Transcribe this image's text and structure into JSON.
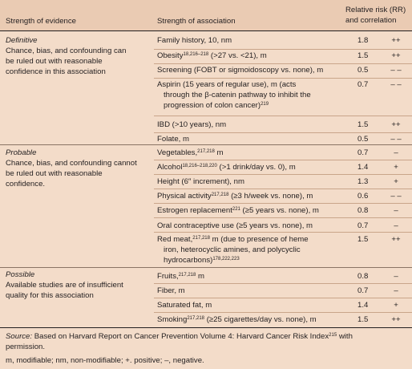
{
  "header": {
    "col1": "Strength of evidence",
    "col2": "Strength of association",
    "col3_line1": "Relative risk (RR)",
    "col3_line2": "and correlation"
  },
  "sections": [
    {
      "category": "Definitive",
      "description": [
        "Chance, bias, and confounding can",
        "be ruled out with reasonable",
        "confidence in this association"
      ],
      "rows": [
        {
          "lines": [
            "Family history, 10, nm"
          ],
          "rr": "1.8",
          "cor": "++"
        },
        {
          "lines": [
            "Obesity",
            "18,216–218",
            " (>27 vs. <21), m"
          ],
          "rr": "1.5",
          "cor": "++"
        },
        {
          "lines": [
            "Screening (FOBT or sigmoidoscopy vs. none), m"
          ],
          "rr": "0.5",
          "cor": "– –"
        },
        {
          "lines": [
            "Aspirin (15 years of regular use), m (acts",
            "through the β-catenin pathway to inhibit the",
            "progression of colon cancer)",
            "219"
          ],
          "rr": "0.7",
          "cor": "– –"
        },
        {
          "lines": [
            "IBD (>10 years), nm"
          ],
          "rr": "1.5",
          "cor": "++"
        },
        {
          "lines": [
            "Folate, m"
          ],
          "rr": "0.5",
          "cor": "– –"
        }
      ]
    },
    {
      "category": "Probable",
      "description": [
        "Chance, bias, and confounding cannot",
        "be ruled out with reasonable",
        "confidence."
      ],
      "rows": [
        {
          "lines": [
            "Vegetables,",
            "217,218",
            " m"
          ],
          "rr": "0.7",
          "cor": "–"
        },
        {
          "lines": [
            "Alcohol",
            "18,216–218,220",
            " (>1 drink/day vs. 0), m"
          ],
          "rr": "1.4",
          "cor": "+"
        },
        {
          "lines": [
            "Height (6″ increment), nm"
          ],
          "rr": "1.3",
          "cor": "+"
        },
        {
          "lines": [
            "Physical activity",
            "217,218",
            " (≥3 h/week vs. none), m"
          ],
          "rr": "0.6",
          "cor": "– –"
        },
        {
          "lines": [
            "Estrogen replacement",
            "221",
            " (≥5 years vs. none), m"
          ],
          "rr": "0.8",
          "cor": "–"
        },
        {
          "lines": [
            "Oral contraceptive use (≥5 years vs. none), m"
          ],
          "rr": "0.7",
          "cor": "–"
        },
        {
          "lines": [
            "Red meat,",
            "217,218",
            " m (due to presence of heme",
            "iron, heterocyclic amines, and polycyclic",
            "hydrocarbons)",
            "178,222,223"
          ],
          "rr": "1.5",
          "cor": "++"
        }
      ]
    },
    {
      "category": "Possible",
      "description": [
        "Available studies are of insufficient",
        "quality for this association"
      ],
      "rows": [
        {
          "lines": [
            "Fruits,",
            "217,218",
            " m"
          ],
          "rr": "0.8",
          "cor": "–"
        },
        {
          "lines": [
            "Fiber, m"
          ],
          "rr": "0.7",
          "cor": "–"
        },
        {
          "lines": [
            "Saturated fat, m"
          ],
          "rr": "1.4",
          "cor": "+"
        },
        {
          "lines": [
            "Smoking",
            "217,218",
            " (≥25 cigarettes/day vs. none), m"
          ],
          "rr": "1.5",
          "cor": "++"
        }
      ]
    }
  ],
  "footer": {
    "source_label": "Source:",
    "source_text": " Based on Harvard Report on Cancer Prevention Volume 4: Harvard Cancer Risk Index",
    "source_sup": "215",
    "source_tail": " with",
    "source_line2": "permission.",
    "legend": "m, modifiable; nm, non-modifiable; +. positive; –, negative."
  }
}
